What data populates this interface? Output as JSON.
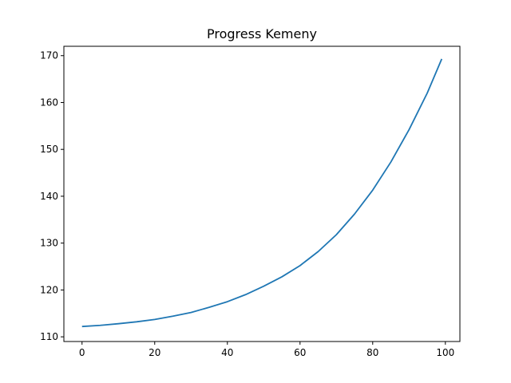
{
  "chart_data": {
    "type": "line",
    "title": "Progress Kemeny",
    "xlabel": "",
    "ylabel": "",
    "xlim": [
      -5,
      104
    ],
    "ylim": [
      109,
      172
    ],
    "xticks": [
      0,
      20,
      40,
      60,
      80,
      100
    ],
    "yticks": [
      110,
      120,
      130,
      140,
      150,
      160,
      170
    ],
    "grid": false,
    "legend": "none",
    "series": [
      {
        "color": "#1f77b4",
        "x": [
          0,
          5,
          10,
          15,
          20,
          25,
          30,
          35,
          40,
          45,
          50,
          55,
          60,
          65,
          70,
          75,
          80,
          85,
          90,
          95,
          99
        ],
        "y": [
          112.2,
          112.45,
          112.8,
          113.2,
          113.7,
          114.4,
          115.2,
          116.3,
          117.5,
          119.0,
          120.8,
          122.8,
          125.2,
          128.2,
          131.8,
          136.2,
          141.3,
          147.3,
          154.2,
          162.0,
          169.3
        ]
      }
    ]
  }
}
